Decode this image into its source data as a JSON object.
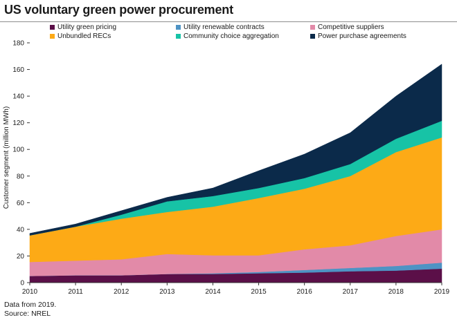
{
  "title": "US voluntary green power procurement",
  "footer": {
    "note": "Data from 2019.",
    "source": "Source: NREL"
  },
  "chart_data": {
    "type": "area",
    "stacked": true,
    "title": "US voluntary green power procurement",
    "ylabel": "Customer segment (million MWh)",
    "xlabel": "",
    "x": [
      2010,
      2011,
      2012,
      2013,
      2014,
      2015,
      2016,
      2017,
      2018,
      2019
    ],
    "ylim": [
      0,
      180
    ],
    "yticks": [
      0,
      20,
      40,
      60,
      80,
      100,
      120,
      140,
      160,
      180
    ],
    "grid": false,
    "legend_position": "top",
    "series": [
      {
        "name": "Utility green pricing",
        "color": "#5b0f48",
        "values": [
          5,
          5.5,
          5.5,
          6.5,
          6.5,
          7,
          7.5,
          8.5,
          9,
          10.5
        ]
      },
      {
        "name": "Utility renewable contracts",
        "color": "#4e93c4",
        "values": [
          0,
          0,
          0,
          0,
          0.5,
          1,
          2,
          2.5,
          3.5,
          4.5
        ]
      },
      {
        "name": "Competitive suppliers",
        "color": "#e28aa8",
        "values": [
          10.5,
          11,
          12,
          15,
          13.5,
          12.5,
          15.5,
          17,
          22.5,
          25
        ]
      },
      {
        "name": "Unbundled RECs",
        "color": "#fdaa16",
        "values": [
          20,
          25.5,
          30.5,
          31.5,
          36.5,
          43,
          45.5,
          52,
          63,
          69
        ]
      },
      {
        "name": "Community choice aggregation",
        "color": "#17c3a6",
        "values": [
          0,
          0,
          3,
          8,
          8,
          7.5,
          8,
          9,
          10,
          12.5
        ]
      },
      {
        "name": "Power purchase agreements",
        "color": "#0b2a4a",
        "values": [
          1.5,
          2,
          3,
          3,
          6,
          13,
          18,
          23.5,
          32,
          42.5
        ]
      }
    ]
  }
}
